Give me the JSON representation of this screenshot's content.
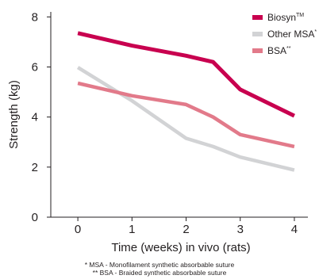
{
  "chart_data": {
    "type": "line",
    "xlabel": "Time (weeks) in vivo (rats)",
    "ylabel": "Strength (kg)",
    "x": [
      0,
      1,
      2,
      2.5,
      3,
      4
    ],
    "x_ticks": [
      0,
      1,
      2,
      3,
      4
    ],
    "y_ticks": [
      0,
      2,
      4,
      6,
      8
    ],
    "xlim": [
      -0.5,
      4.25
    ],
    "ylim": [
      0,
      8.2
    ],
    "grid": false,
    "legend_position": "top-right",
    "series": [
      {
        "name": "Biosyn",
        "name_superscript": "TM",
        "color": "#c8004f",
        "points": [
          [
            0,
            7.35
          ],
          [
            1,
            6.85
          ],
          [
            2,
            6.45
          ],
          [
            2.5,
            6.2
          ],
          [
            3,
            5.1
          ],
          [
            4,
            4.05
          ]
        ]
      },
      {
        "name": "Other MSA",
        "name_superscript": "*",
        "color": "#d2d3d5",
        "points": [
          [
            0,
            5.98
          ],
          [
            1,
            4.65
          ],
          [
            2,
            3.15
          ],
          [
            2.5,
            2.82
          ],
          [
            3,
            2.4
          ],
          [
            4,
            1.88
          ]
        ]
      },
      {
        "name": "BSA",
        "name_superscript": "**",
        "color": "#e27a8a",
        "points": [
          [
            0,
            5.35
          ],
          [
            1,
            4.85
          ],
          [
            2,
            4.5
          ],
          [
            2.5,
            4.0
          ],
          [
            3,
            3.3
          ],
          [
            4,
            2.82
          ]
        ]
      }
    ]
  },
  "footnotes": [
    "* MSA - Monofilament synthetic absorbable suture",
    "** BSA - Braided synthetic absorbable suture"
  ]
}
